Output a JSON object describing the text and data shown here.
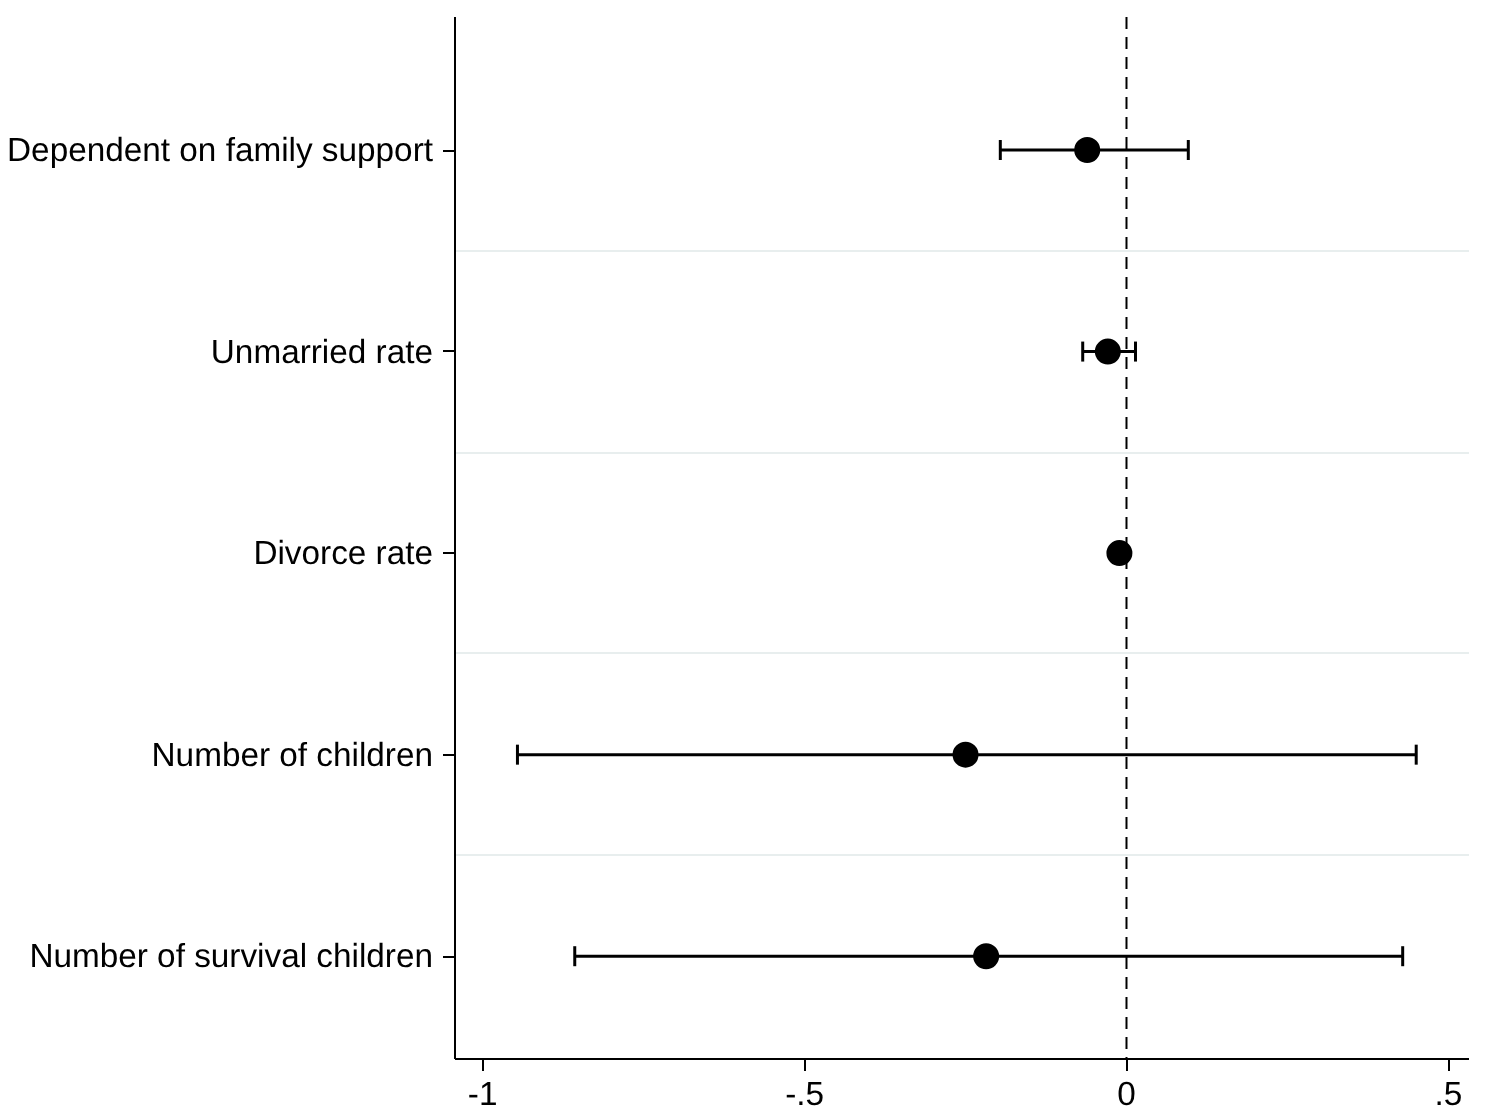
{
  "chart_data": {
    "type": "scatter",
    "orientation": "horizontal",
    "categories": [
      "Dependent on family support",
      "Unmarried rate",
      "Divorce rate",
      "Number of children",
      "Number of survival children"
    ],
    "values": [
      -0.061,
      -0.029,
      -0.011,
      -0.25,
      -0.218
    ],
    "errors": [
      [
        -0.196,
        0.096
      ],
      [
        -0.068,
        0.014
      ],
      null,
      [
        -0.946,
        0.45
      ],
      [
        -0.857,
        0.429
      ]
    ],
    "color": "#000000",
    "marker": "circle",
    "xlim": [
      -1.043,
      0.532
    ],
    "xticks": [
      {
        "value": -1,
        "label": "-1"
      },
      {
        "value": -0.5,
        "label": "-.5"
      },
      {
        "value": 0,
        "label": "0"
      },
      {
        "value": 0.5,
        "label": ".5"
      }
    ],
    "ref_lines": [
      {
        "axis": "x",
        "value": 0,
        "line_style": "dashed",
        "color": "#000000"
      }
    ],
    "grid": "y"
  }
}
